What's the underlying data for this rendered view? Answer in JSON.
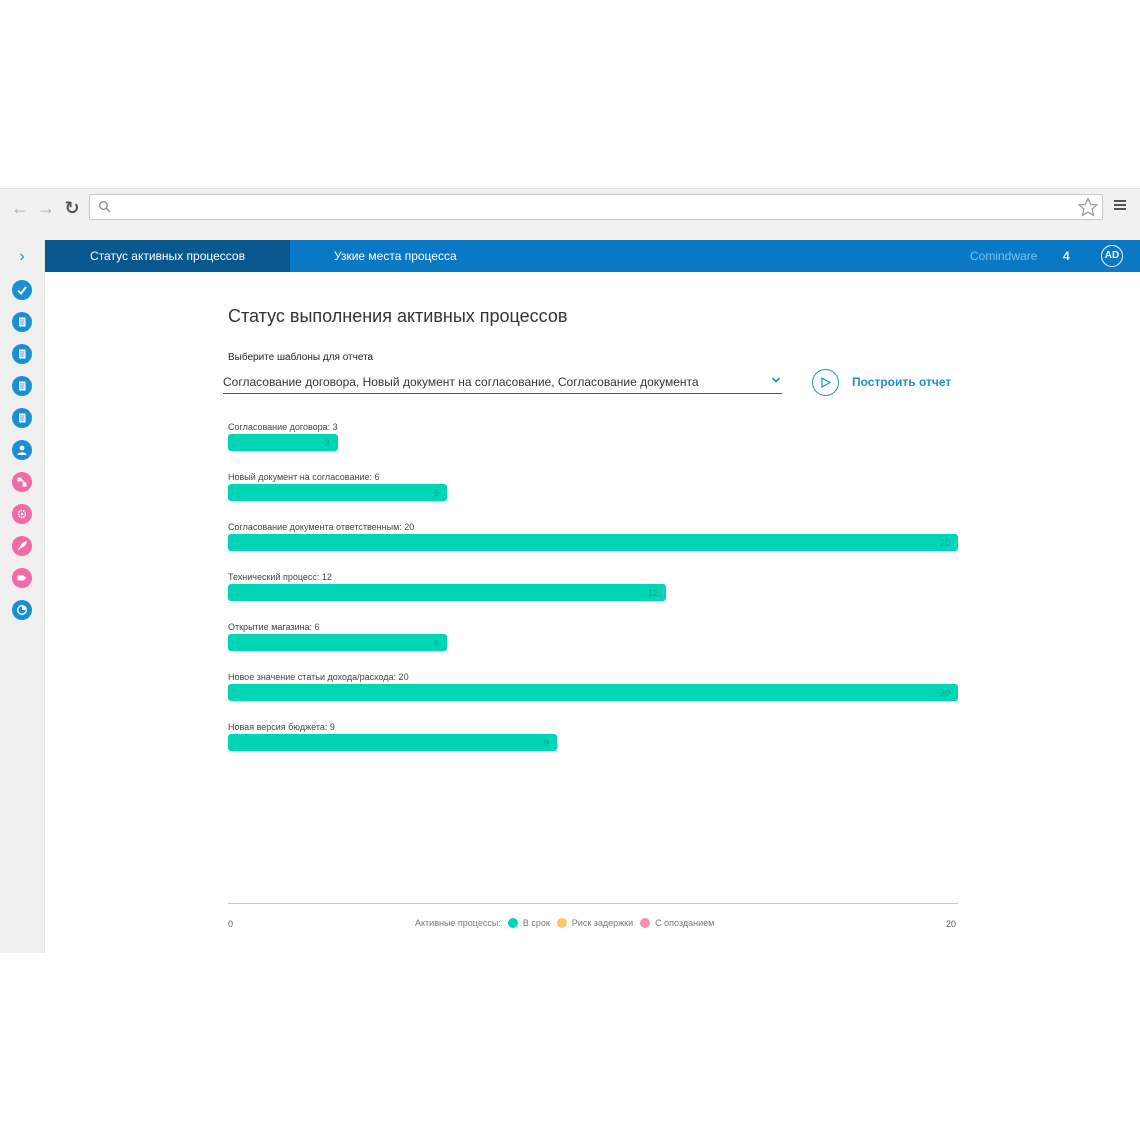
{
  "browser": {
    "back_icon": "arrow-left-icon",
    "forward_icon": "arrow-right-icon",
    "reload_icon": "reload-icon",
    "url_value": "",
    "bookmark_icon": "star-icon",
    "menu_icon": "hamburger-menu-icon"
  },
  "sidebar": {
    "toggle_icon": "chevron-right-icon",
    "items": [
      {
        "icon": "check-icon",
        "color": "#1a8fd1"
      },
      {
        "icon": "document-icon",
        "color": "#1a8fd1"
      },
      {
        "icon": "document-icon",
        "color": "#1a8fd1"
      },
      {
        "icon": "document-icon",
        "color": "#1a8fd1"
      },
      {
        "icon": "document-icon",
        "color": "#1a8fd1"
      },
      {
        "icon": "user-icon",
        "color": "#1a8fd1"
      },
      {
        "icon": "diagram-icon",
        "color": "#f06aa8"
      },
      {
        "icon": "gear-icon",
        "color": "#f06aa8"
      },
      {
        "icon": "rocket-icon",
        "color": "#f06aa8"
      },
      {
        "icon": "tag-icon",
        "color": "#f06aa8"
      },
      {
        "icon": "pie-chart-icon",
        "color": "#1a8fd1"
      }
    ]
  },
  "header": {
    "tabs": [
      {
        "label": "Статус активных процессов",
        "active": true
      },
      {
        "label": "Узкие места процесса",
        "active": false
      }
    ],
    "brand": "Comindware",
    "count": "4",
    "avatar": "AD"
  },
  "main": {
    "title": "Статус выполнения активных процессов",
    "templates_label": "Выберите шаблоны для отчета",
    "templates_value": "Согласование договора, Новый документ на согласование, Согласование документа",
    "build_button": "Построить отчет"
  },
  "chart_data": {
    "type": "bar",
    "orientation": "horizontal",
    "categories": [
      "Согласование договора: 3",
      "Новый документ на согласование: 6",
      "Согласование документа ответственным: 20",
      "Технический процесс: 12",
      "Открытие магазина: 6",
      "Новое значение статьи дохода/расхода: 20",
      "Новая версия бюджета: 9"
    ],
    "series": [
      {
        "name": "В срок",
        "color": "#00d6b5",
        "values": [
          3,
          6,
          20,
          12,
          6,
          20,
          9
        ]
      }
    ],
    "xlim": [
      0,
      20
    ],
    "x_min_label": "0",
    "x_max_label": "20",
    "legend": {
      "title": "Активные процессы:",
      "items": [
        {
          "label": "В срок",
          "color": "#00d6b5"
        },
        {
          "label": "Риск задержки",
          "color": "#f7c86e"
        },
        {
          "label": "С опозданием",
          "color": "#f58fb5"
        }
      ]
    }
  }
}
